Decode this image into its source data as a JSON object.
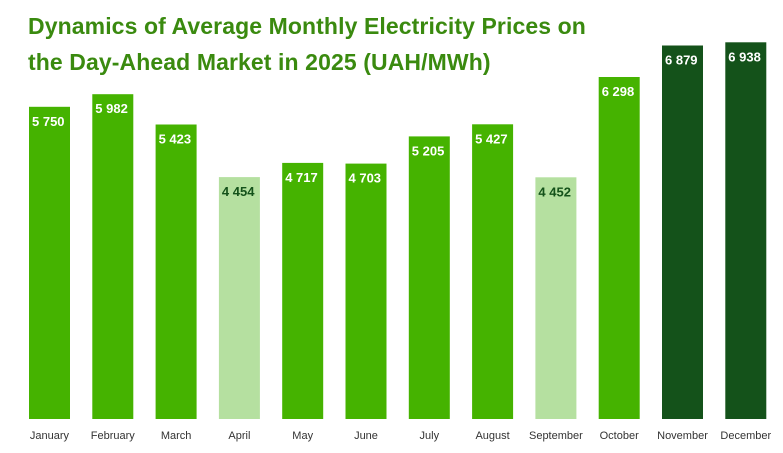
{
  "title": {
    "line1": "Dynamics of Average Monthly Electricity Prices on",
    "line2": "the Day-Ahead Market in 2025 (UAH/MWh)"
  },
  "colors": {
    "title": "#3a8a0f",
    "bar_default": "#45b300",
    "bar_low": "#b5e0a0",
    "bar_high": "#14521a",
    "label_on_dark": "#ffffff",
    "label_on_light": "#14521a"
  },
  "chart_data": {
    "type": "bar",
    "title": "Dynamics of Average Monthly Electricity Prices on the Day-Ahead Market in 2025 (UAH/MWh)",
    "xlabel": "",
    "ylabel": "",
    "ylim": [
      0,
      7000
    ],
    "grid": false,
    "categories": [
      "January",
      "February",
      "March",
      "April",
      "May",
      "June",
      "July",
      "August",
      "September",
      "October",
      "November",
      "December"
    ],
    "values": [
      5750,
      5982,
      5423,
      4454,
      4717,
      4703,
      5205,
      5427,
      4452,
      6298,
      6879,
      6938
    ],
    "value_labels": [
      "5 750",
      "5 982",
      "5 423",
      "4 454",
      "4 717",
      "4 703",
      "5 205",
      "5 427",
      "4 452",
      "6 298",
      "6 879",
      "6 938"
    ],
    "bar_styles": [
      "default",
      "default",
      "default",
      "low",
      "default",
      "default",
      "default",
      "default",
      "low",
      "default",
      "high",
      "high"
    ]
  }
}
